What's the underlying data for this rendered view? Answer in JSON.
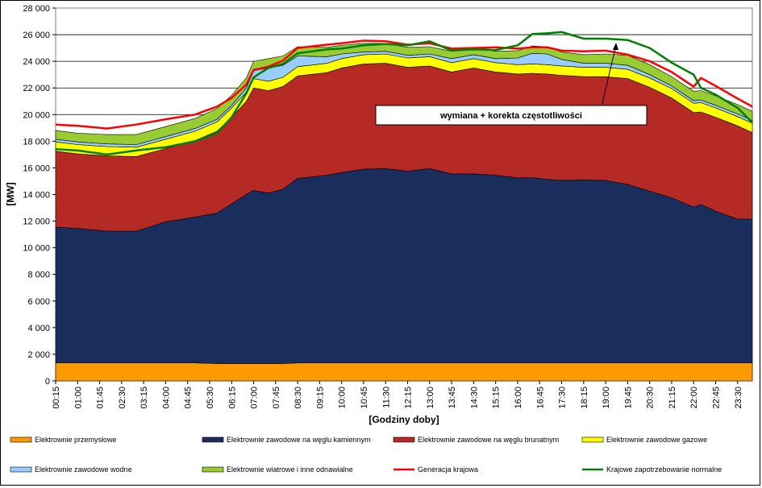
{
  "chart_data": {
    "type": "area",
    "xlabel": "[Godziny doby]",
    "ylabel": "[MW]",
    "ylim": [
      0,
      28000
    ],
    "y_ticks": [
      "0",
      "2 000",
      "4 000",
      "6 000",
      "8 000",
      "10 000",
      "12 000",
      "14 000",
      "16 000",
      "18 000",
      "20 000",
      "22 000",
      "24 000",
      "26 000",
      "28 000"
    ],
    "x_ticks": [
      "00:15",
      "01:00",
      "01:45",
      "02:30",
      "03:15",
      "04:00",
      "04:45",
      "05:30",
      "06:15",
      "07:00",
      "07:45",
      "08:30",
      "09:15",
      "10:00",
      "10:45",
      "11:30",
      "12:15",
      "13:00",
      "13:45",
      "14:30",
      "15:15",
      "16:00",
      "16:45",
      "17:30",
      "18:15",
      "19:00",
      "19:45",
      "20:30",
      "21:15",
      "22:00",
      "22:45",
      "23:30"
    ],
    "grid": true,
    "legend_position": "bottom",
    "colors": {
      "przemyslowe": "#ff9900",
      "kamienny": "#1a2e5e",
      "brunatny": "#b52a25",
      "gazowe": "#ffff00",
      "wodne": "#99ccff",
      "wiatrowe": "#99cc33",
      "generacja": "#ff0000",
      "zapotrzebowanie": "#008000",
      "plot_background": "#ffffff",
      "plot_border": "#808080"
    },
    "anchor_x": [
      "00:15",
      "01:00",
      "02:00",
      "03:00",
      "04:00",
      "05:00",
      "05:45",
      "06:15",
      "06:45",
      "07:00",
      "07:30",
      "08:00",
      "08:30",
      "09:30",
      "10:00",
      "10:45",
      "11:30",
      "12:15",
      "13:00",
      "13:45",
      "14:30",
      "15:15",
      "16:00",
      "16:30",
      "17:00",
      "17:30",
      "18:15",
      "19:00",
      "19:45",
      "20:30",
      "21:15",
      "22:00",
      "22:15",
      "22:45",
      "23:30",
      "24:00"
    ],
    "series": [
      {
        "name": "Elektrownie przemysłowe",
        "kind": "area",
        "values": [
          1350,
          1350,
          1350,
          1350,
          1350,
          1350,
          1300,
          1300,
          1300,
          1300,
          1300,
          1300,
          1350,
          1350,
          1350,
          1350,
          1350,
          1350,
          1350,
          1350,
          1350,
          1350,
          1350,
          1350,
          1350,
          1350,
          1350,
          1350,
          1350,
          1350,
          1350,
          1350,
          1350,
          1350,
          1350,
          1350
        ]
      },
      {
        "name": "Elektrownie zawodowe na węglu kamiennym",
        "kind": "area",
        "values": [
          10200,
          10100,
          9900,
          9900,
          10600,
          10950,
          11300,
          12000,
          12700,
          13000,
          12800,
          13100,
          13850,
          14100,
          14300,
          14550,
          14600,
          14400,
          14600,
          14200,
          14200,
          14100,
          13900,
          13900,
          13800,
          13700,
          13750,
          13700,
          13400,
          12900,
          12400,
          11700,
          11900,
          11400,
          10800,
          10800
        ]
      },
      {
        "name": "Elektrownie zawodowe na węglu brunatnym",
        "kind": "area",
        "values": [
          5700,
          5600,
          5650,
          5600,
          5500,
          5750,
          6150,
          6500,
          7000,
          7700,
          7700,
          7700,
          7700,
          7700,
          7850,
          7900,
          7900,
          7800,
          7700,
          7650,
          7950,
          7750,
          7800,
          7850,
          7900,
          7900,
          7750,
          7800,
          7950,
          7800,
          7500,
          7100,
          6950,
          7050,
          7000,
          6500
        ]
      },
      {
        "name": "Elektrownie zawodowe gazowe",
        "kind": "area",
        "values": [
          700,
          700,
          700,
          700,
          700,
          700,
          700,
          700,
          700,
          700,
          700,
          700,
          700,
          700,
          700,
          700,
          700,
          700,
          700,
          700,
          700,
          700,
          700,
          700,
          700,
          700,
          700,
          700,
          700,
          700,
          700,
          700,
          700,
          700,
          700,
          700
        ]
      },
      {
        "name": "Elektrownie zawodowe wodne",
        "kind": "area",
        "values": [
          200,
          200,
          200,
          200,
          200,
          200,
          200,
          200,
          300,
          600,
          1000,
          900,
          800,
          500,
          350,
          200,
          200,
          200,
          200,
          300,
          300,
          300,
          500,
          800,
          800,
          500,
          300,
          300,
          300,
          250,
          200,
          200,
          200,
          200,
          200,
          200
        ]
      },
      {
        "name": "Elektrownie wiatrowe i inne odnawialne",
        "kind": "area",
        "values": [
          650,
          650,
          700,
          750,
          750,
          750,
          800,
          750,
          750,
          700,
          700,
          700,
          700,
          700,
          650,
          650,
          600,
          600,
          550,
          550,
          550,
          550,
          550,
          550,
          550,
          550,
          650,
          700,
          750,
          750,
          700,
          700,
          700,
          700,
          700,
          700
        ]
      },
      {
        "name": "Generacja krajowa",
        "kind": "line",
        "values": [
          19250,
          19150,
          18950,
          19250,
          19650,
          20000,
          20600,
          21250,
          22250,
          23350,
          23600,
          24050,
          25000,
          25250,
          25350,
          25550,
          25500,
          25250,
          25350,
          24950,
          25000,
          25050,
          24950,
          25050,
          25050,
          24800,
          24750,
          24800,
          24500,
          24000,
          23200,
          22100,
          22750,
          22150,
          21200,
          20600
        ]
      },
      {
        "name": "Krajowe zapotrzebowanie normalne",
        "kind": "line",
        "values": [
          17400,
          17300,
          17000,
          17300,
          17550,
          18000,
          18600,
          19800,
          21600,
          22800,
          23500,
          23800,
          24600,
          24900,
          24950,
          25200,
          25300,
          25200,
          25500,
          24800,
          24900,
          24850,
          25200,
          26050,
          26100,
          26200,
          25700,
          25700,
          25600,
          25000,
          23900,
          23000,
          22000,
          21500,
          20500,
          19400
        ]
      }
    ],
    "annotation": "wymiana + korekta częstotliwości"
  }
}
